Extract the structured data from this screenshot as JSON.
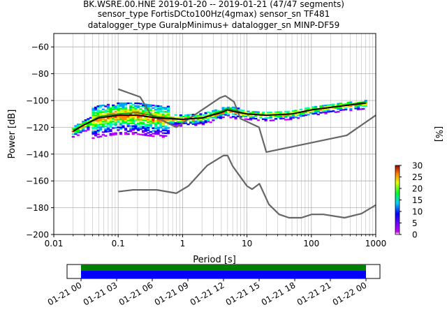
{
  "title_lines": [
    "BK.WSRE.00.HNE   2019-01-20 -- 2019-01-21  (47/47 segments)",
    "sensor_type FortisDCto100Hz(4gmax) sensor_sn TF481",
    "datalogger_type GuralpMinimus+ datalogger_sn MINP-DF59"
  ],
  "colorbar": {
    "label": "[%]",
    "ticks": [
      "0",
      "5",
      "10",
      "15",
      "20",
      "25",
      "30"
    ],
    "range": [
      0,
      30
    ]
  },
  "timeline": {
    "tick_labels": [
      "01-21 00",
      "01-21 03",
      "01-21 06",
      "01-21 09",
      "01-21 12",
      "01-21 15",
      "01-21 18",
      "01-21 21",
      "01-22 00"
    ],
    "bar_colors": [
      "#008000",
      "#0000ff"
    ]
  },
  "chart_data": {
    "type": "heatmap",
    "xlabel": "Period [s]",
    "ylabel": "Power [dB]",
    "x_scale": "log",
    "xlim": [
      0.01,
      1000
    ],
    "ylim": [
      -200,
      -50
    ],
    "x_tick_labels": [
      "0.01",
      "0.1",
      "1",
      "10",
      "100",
      "1000"
    ],
    "y_ticks": [
      -60,
      -80,
      -100,
      -120,
      -140,
      -160,
      -180,
      -200
    ],
    "grid": true,
    "noise_models": {
      "high": [
        [
          0.1,
          -91.5
        ],
        [
          0.22,
          -97.4
        ],
        [
          0.32,
          -110.5
        ],
        [
          0.8,
          -120
        ],
        [
          3.8,
          -98
        ],
        [
          4.6,
          -96.5
        ],
        [
          6.3,
          -101
        ],
        [
          7.9,
          -113.5
        ],
        [
          15.4,
          -120
        ],
        [
          20,
          -138.5
        ],
        [
          354.8,
          -126
        ],
        [
          1000,
          -111
        ]
      ],
      "low": [
        [
          0.1,
          -168
        ],
        [
          0.17,
          -166.7
        ],
        [
          0.4,
          -166.7
        ],
        [
          0.8,
          -169.2
        ],
        [
          1.24,
          -163.7
        ],
        [
          2.4,
          -148.6
        ],
        [
          4.3,
          -141.1
        ],
        [
          5,
          -141.1
        ],
        [
          6,
          -149
        ],
        [
          10,
          -163.8
        ],
        [
          12,
          -166.2
        ],
        [
          15.6,
          -162.1
        ],
        [
          21.9,
          -177.5
        ],
        [
          31.6,
          -185
        ],
        [
          45,
          -187.5
        ],
        [
          70,
          -187.5
        ],
        [
          101,
          -185
        ],
        [
          154,
          -185
        ],
        [
          328,
          -187.5
        ],
        [
          600,
          -184.4
        ],
        [
          1000,
          -178
        ]
      ]
    },
    "mode_curve": [
      [
        0.02,
        -123
      ],
      [
        0.03,
        -118
      ],
      [
        0.05,
        -113
      ],
      [
        0.1,
        -111
      ],
      [
        0.2,
        -111
      ],
      [
        0.4,
        -113
      ],
      [
        1,
        -114
      ],
      [
        2,
        -113
      ],
      [
        4,
        -109
      ],
      [
        5,
        -107
      ],
      [
        6,
        -108
      ],
      [
        10,
        -110
      ],
      [
        20,
        -111
      ],
      [
        50,
        -110
      ],
      [
        100,
        -107
      ],
      [
        300,
        -104
      ],
      [
        700,
        -102
      ]
    ],
    "mean_curve": [
      [
        0.02,
        -122
      ],
      [
        0.03,
        -118
      ],
      [
        0.05,
        -112
      ],
      [
        0.1,
        -110
      ],
      [
        0.2,
        -109
      ],
      [
        0.4,
        -112
      ],
      [
        1,
        -114
      ],
      [
        2,
        -113
      ],
      [
        4,
        -108
      ],
      [
        5,
        -106
      ],
      [
        6,
        -107
      ],
      [
        10,
        -110
      ],
      [
        20,
        -111
      ],
      [
        50,
        -110
      ],
      [
        100,
        -107
      ],
      [
        300,
        -104
      ],
      [
        700,
        -101
      ]
    ]
  }
}
